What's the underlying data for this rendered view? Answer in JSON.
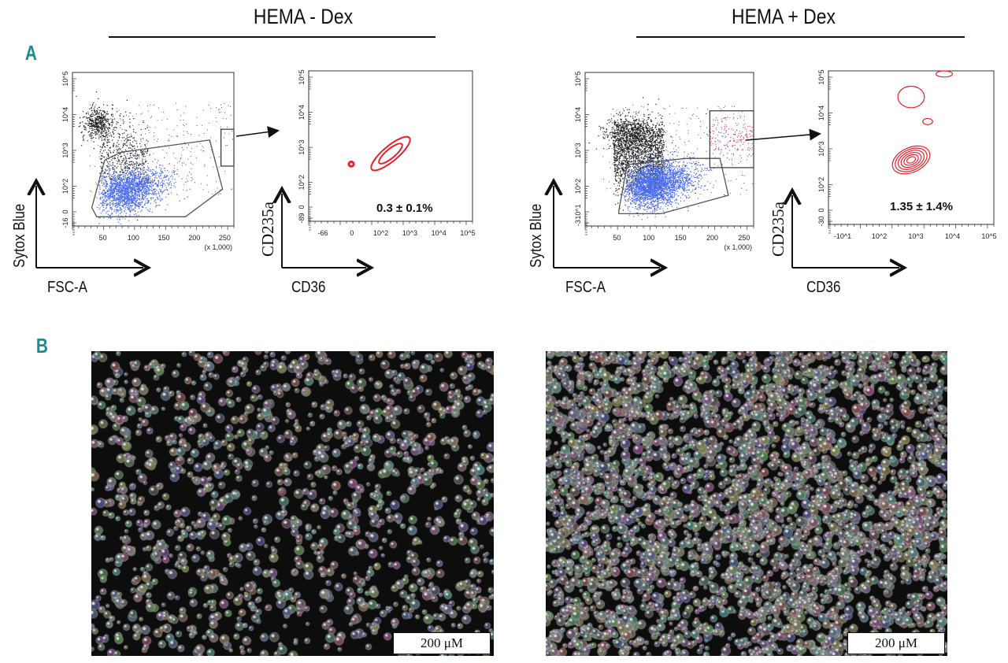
{
  "figure": {
    "conditions": [
      "HEMA - Dex",
      "HEMA + Dex"
    ],
    "panel_labels": {
      "a": "A",
      "b": "B"
    },
    "colors": {
      "panel_label": "#1f8a8c",
      "gated_population": "#4a6cf0",
      "contour": "#e8202a",
      "events": "#222222"
    }
  },
  "panel_a": {
    "left": {
      "scatter": {
        "y_ticks": [
          "10^5",
          "10^4",
          "10^3",
          "10^2",
          "0",
          "-16"
        ],
        "x_ticks": [
          "50",
          "100",
          "150",
          "200",
          "250"
        ],
        "x_multiplier": "(x 1,000)",
        "y_axis_label": "Sytox Blue",
        "x_axis_label": "FSC-A"
      },
      "contour": {
        "y_ticks": [
          "10^5",
          "10^4",
          "10^3",
          "10^2",
          "0",
          "-89"
        ],
        "x_ticks": [
          "-66",
          "0",
          "10^2",
          "10^3",
          "10^4",
          "10^5"
        ],
        "y_axis_label": "CD235a",
        "x_axis_label": "CD36",
        "percentage": "0.3 ± 0.1%"
      }
    },
    "right": {
      "scatter": {
        "y_ticks": [
          "10^5",
          "10^4",
          "10^3",
          "10^2",
          "10^1",
          "-3"
        ],
        "x_ticks": [
          "50",
          "100",
          "150",
          "200",
          "250"
        ],
        "x_multiplier": "(x 1,000)",
        "y_axis_label": "Sytox Blue",
        "x_axis_label": "FSC-A"
      },
      "contour": {
        "y_ticks": [
          "10^5",
          "10^4",
          "10^3",
          "10^2",
          "0",
          "-30"
        ],
        "x_ticks": [
          "-10^1",
          "10^2",
          "10^3",
          "10^4",
          "10^5"
        ],
        "y_axis_label": "CD235a",
        "x_axis_label": "CD36",
        "percentage": "1.35 ± 1.4%"
      }
    }
  },
  "panel_b": {
    "left": {
      "scale_bar": "200 μM",
      "cell_density": "sparse"
    },
    "right": {
      "scale_bar": "200 μM",
      "cell_density": "dense"
    }
  }
}
